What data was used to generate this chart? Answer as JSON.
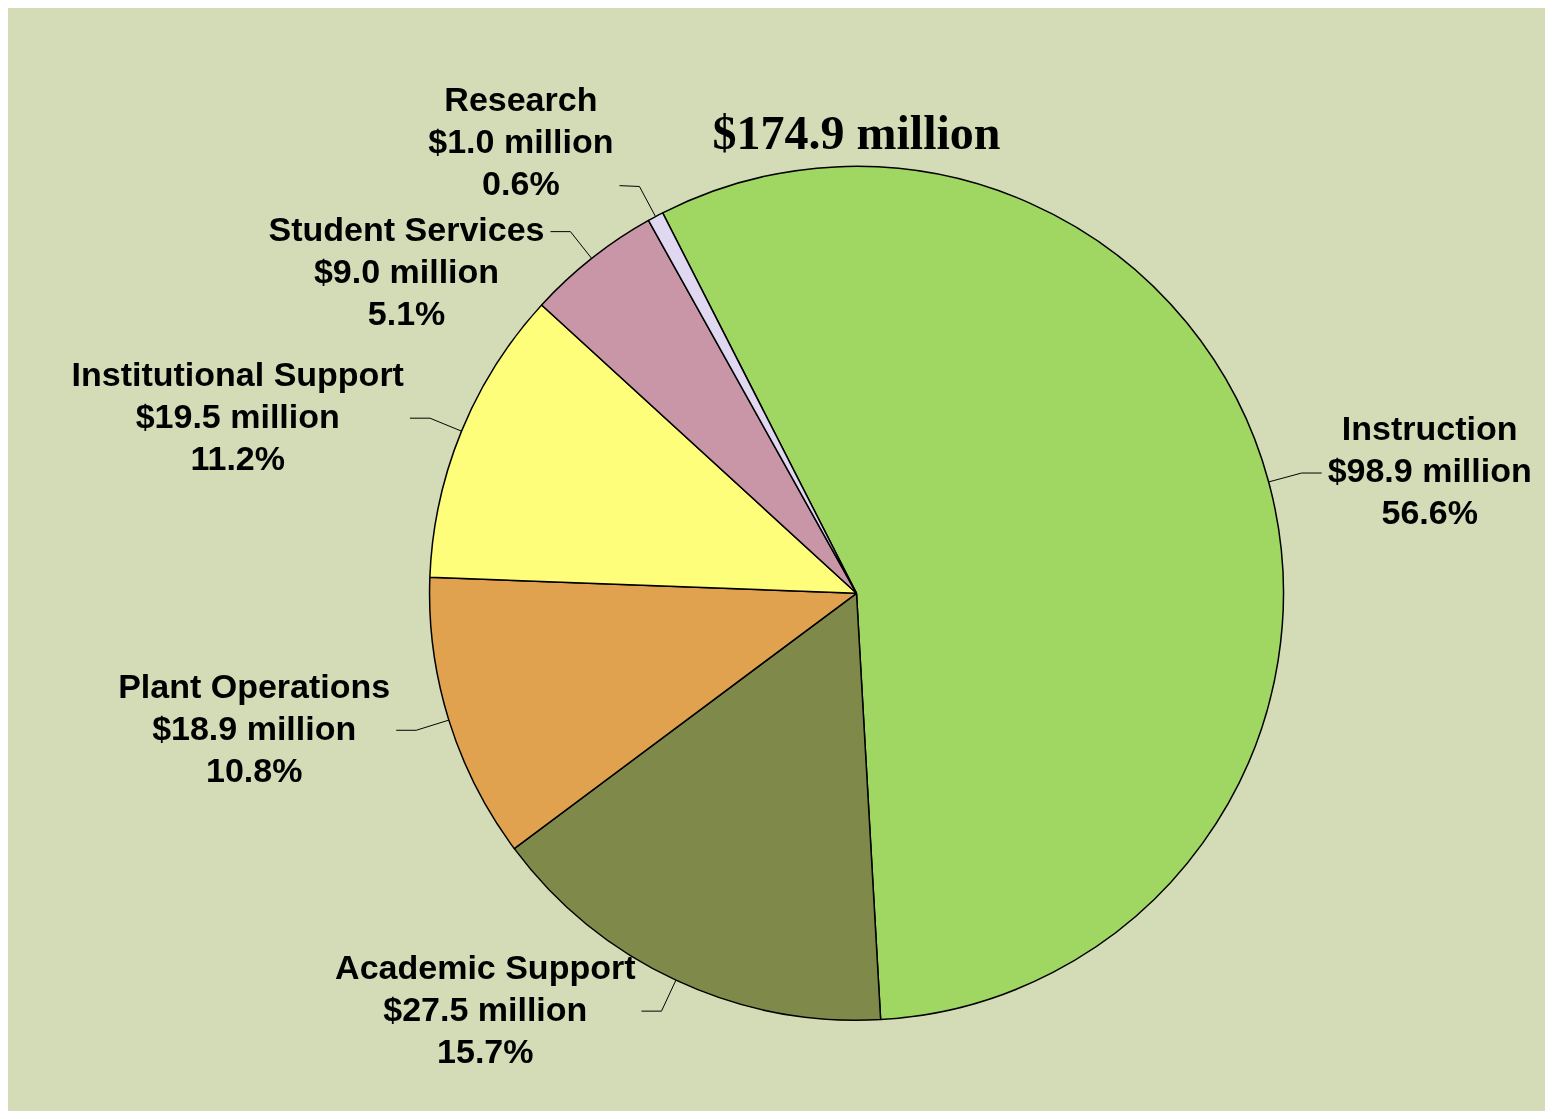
{
  "chart_data": {
    "type": "pie",
    "title": "$174.9 million",
    "categories": [
      "Instruction",
      "Academic Support",
      "Plant Operations",
      "Institutional Support",
      "Student Services",
      "Research"
    ],
    "values": [
      56.6,
      15.7,
      10.8,
      11.2,
      5.1,
      0.6
    ],
    "colors": [
      "#a0d662",
      "#7f8a4a",
      "#e0a24e",
      "#fefe7a",
      "#c896a6",
      "#e0d8f0"
    ],
    "value_labels": [
      "$98.9 million\n56.6%",
      "$27.5 million\n15.7%",
      "$18.9 million\n10.8%",
      "$19.5 million\n11.2%",
      "$9.0 million\n5.1%",
      "$1.0 million\n0.6%"
    ],
    "legend": false
  }
}
